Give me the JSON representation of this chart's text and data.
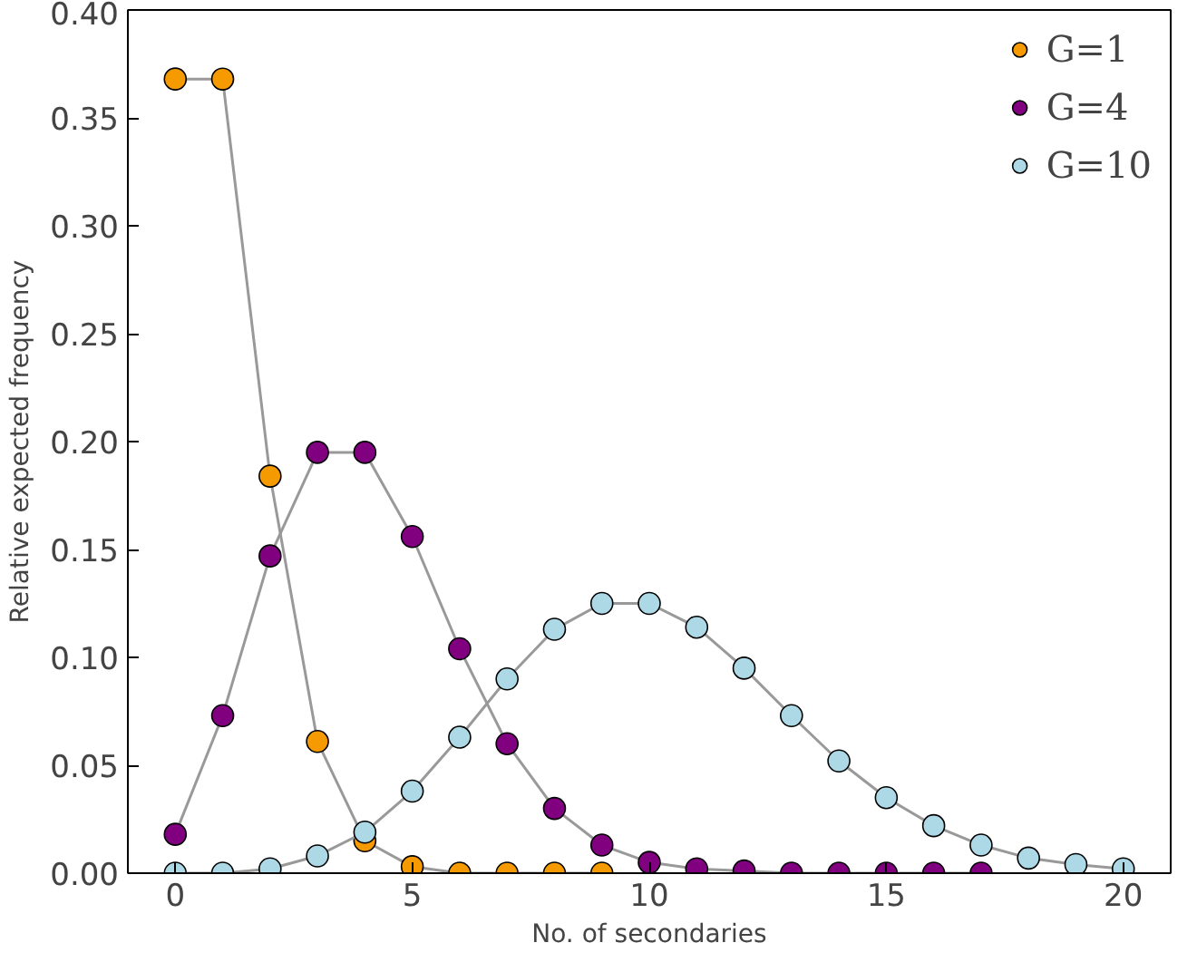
{
  "chart_data": {
    "type": "line",
    "xlabel": "No. of secondaries",
    "ylabel": "Relative expected frequency",
    "marker": "circle",
    "legend": "top right",
    "grid": false,
    "xlim": [
      -1,
      21
    ],
    "xticks": [
      0,
      5,
      10,
      15,
      20
    ],
    "ylim": [
      0,
      0.4
    ],
    "yticks": [
      {
        "value": 0,
        "label": "0.00"
      },
      {
        "value": 0.05,
        "label": "0.05"
      },
      {
        "value": 0.1,
        "label": "0.10"
      },
      {
        "value": 0.15,
        "label": "0.15"
      },
      {
        "value": 0.2,
        "label": "0.20"
      },
      {
        "value": 0.25,
        "label": "0.25"
      },
      {
        "value": 0.3,
        "label": "0.30"
      },
      {
        "value": 0.35,
        "label": "0.35"
      },
      {
        "value": 0.4,
        "label": "0.40"
      }
    ],
    "series": [
      {
        "name": "G=1",
        "color": "#f59a00",
        "x": [
          0,
          1,
          2,
          3,
          4,
          5,
          6,
          7,
          8,
          9
        ],
        "values": [
          0.368,
          0.368,
          0.184,
          0.061,
          0.015,
          0.003,
          0.0,
          0.0,
          0.0,
          0.0
        ]
      },
      {
        "name": "G=4",
        "color": "#800080",
        "x": [
          0,
          1,
          2,
          3,
          4,
          5,
          6,
          7,
          8,
          9,
          10,
          11,
          12,
          13,
          14,
          15,
          16,
          17
        ],
        "values": [
          0.018,
          0.073,
          0.147,
          0.195,
          0.195,
          0.156,
          0.104,
          0.06,
          0.03,
          0.013,
          0.005,
          0.002,
          0.001,
          0.0,
          0.0,
          0.0,
          0.0,
          0.0
        ]
      },
      {
        "name": "G=10",
        "color": "#add8e6",
        "x": [
          0,
          1,
          2,
          3,
          4,
          5,
          6,
          7,
          8,
          9,
          10,
          11,
          12,
          13,
          14,
          15,
          16,
          17,
          18,
          19,
          20
        ],
        "values": [
          0.0,
          0.0,
          0.002,
          0.008,
          0.019,
          0.038,
          0.063,
          0.09,
          0.113,
          0.125,
          0.125,
          0.114,
          0.095,
          0.073,
          0.052,
          0.035,
          0.022,
          0.013,
          0.007,
          0.004,
          0.002
        ]
      }
    ]
  }
}
